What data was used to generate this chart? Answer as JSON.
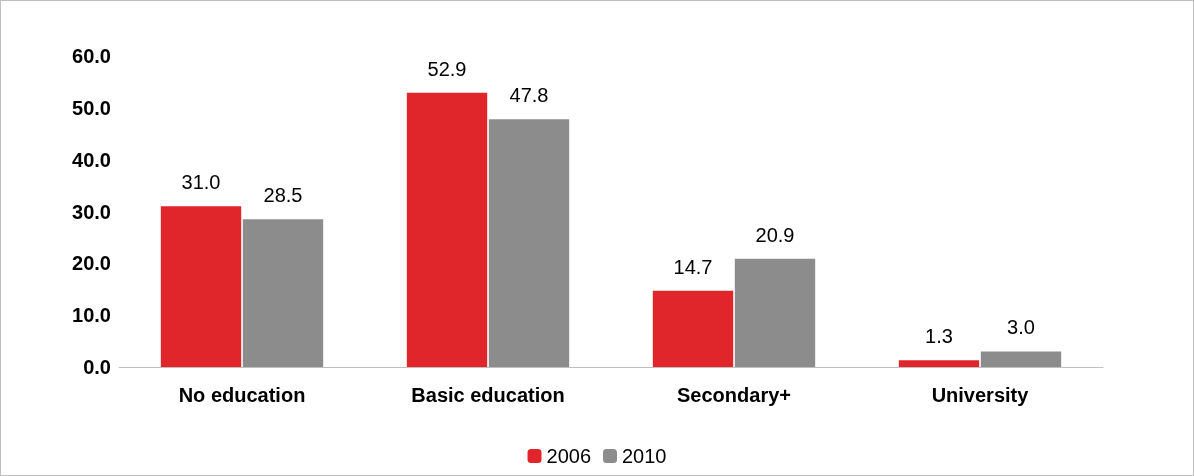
{
  "chart_data": {
    "type": "bar",
    "categories": [
      "No education",
      "Basic education",
      "Secondary+",
      "University"
    ],
    "series": [
      {
        "name": "2006",
        "color": "#e0262b",
        "values": [
          31.0,
          52.9,
          14.7,
          1.3
        ],
        "value_labels": [
          "31.0",
          "52.9",
          "14.7",
          "1.3"
        ]
      },
      {
        "name": "2010",
        "color": "#8c8c8c",
        "values": [
          28.5,
          47.8,
          20.9,
          3.0
        ],
        "value_labels": [
          "28.5",
          "47.8",
          "20.9",
          "3.0"
        ]
      }
    ],
    "ylim": [
      0,
      60
    ],
    "yticks": [
      {
        "value": 0,
        "label": "0.0"
      },
      {
        "value": 10,
        "label": "10.0"
      },
      {
        "value": 20,
        "label": "20.0"
      },
      {
        "value": 30,
        "label": "30.0"
      },
      {
        "value": 40,
        "label": "40.0"
      },
      {
        "value": 50,
        "label": "50.0"
      },
      {
        "value": 60,
        "label": "60.0"
      }
    ],
    "grid": false,
    "legend": "bottom"
  }
}
